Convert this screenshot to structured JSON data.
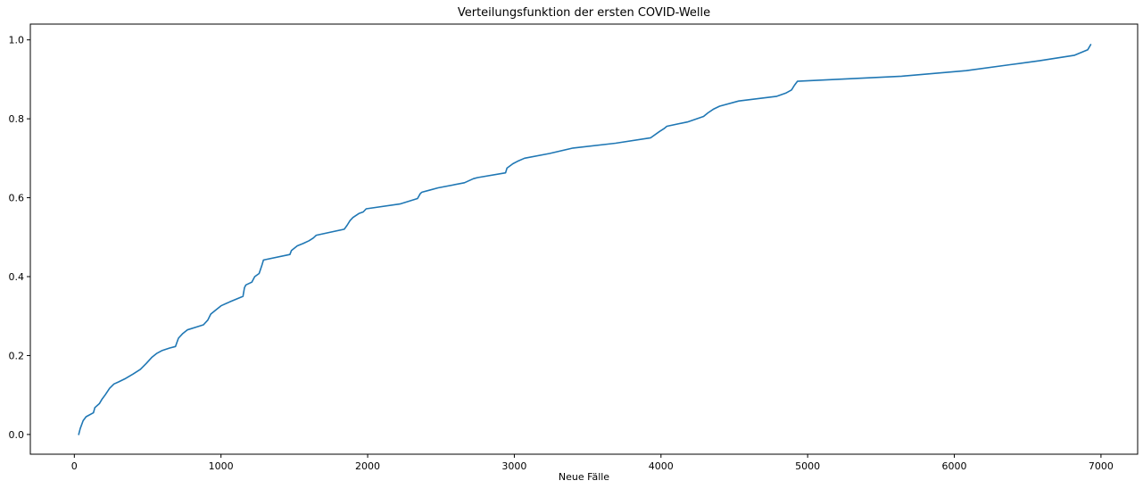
{
  "chart_data": {
    "type": "line",
    "title": "Verteilungsfunktion der ersten COVID-Welle",
    "xlabel": "Neue Fälle",
    "ylabel": "",
    "xlim": [
      -300,
      7250
    ],
    "ylim": [
      -0.05,
      1.04
    ],
    "xticks": [
      0,
      1000,
      2000,
      3000,
      4000,
      5000,
      6000,
      7000
    ],
    "xtick_labels": [
      "0",
      "1000",
      "2000",
      "3000",
      "4000",
      "5000",
      "6000",
      "7000"
    ],
    "yticks": [
      0.0,
      0.2,
      0.4,
      0.6,
      0.8,
      1.0
    ],
    "ytick_labels": [
      "0.0",
      "0.2",
      "0.4",
      "0.6",
      "0.8",
      "1.0"
    ],
    "grid": false,
    "legend": "none",
    "series": [
      {
        "color": "#1f77b4",
        "x": [
          30,
          40,
          60,
          80,
          130,
          140,
          170,
          190,
          210,
          240,
          270,
          300,
          350,
          400,
          450,
          490,
          530,
          560,
          600,
          650,
          690,
          700,
          710,
          740,
          770,
          830,
          880,
          910,
          930,
          960,
          1000,
          1060,
          1150,
          1160,
          1170,
          1210,
          1230,
          1260,
          1280,
          1290,
          1470,
          1480,
          1520,
          1560,
          1600,
          1630,
          1650,
          1840,
          1860,
          1880,
          1900,
          1940,
          1970,
          1990,
          2220,
          2340,
          2360,
          2370,
          2420,
          2480,
          2660,
          2720,
          2750,
          2940,
          2950,
          2990,
          3020,
          3070,
          3240,
          3400,
          3690,
          3930,
          3990,
          4020,
          4040,
          4180,
          4290,
          4320,
          4360,
          4400,
          4530,
          4790,
          4850,
          4890,
          4910,
          4930,
          5640,
          6080,
          6380,
          6580,
          6820,
          6910,
          6930
        ],
        "y": [
          0.0,
          0.015,
          0.035,
          0.045,
          0.055,
          0.068,
          0.078,
          0.09,
          0.1,
          0.117,
          0.128,
          0.133,
          0.142,
          0.153,
          0.165,
          0.18,
          0.196,
          0.205,
          0.213,
          0.219,
          0.223,
          0.234,
          0.244,
          0.256,
          0.265,
          0.272,
          0.278,
          0.29,
          0.305,
          0.314,
          0.326,
          0.336,
          0.35,
          0.372,
          0.379,
          0.386,
          0.4,
          0.408,
          0.43,
          0.442,
          0.456,
          0.466,
          0.478,
          0.484,
          0.491,
          0.498,
          0.505,
          0.52,
          0.53,
          0.542,
          0.55,
          0.56,
          0.564,
          0.572,
          0.584,
          0.598,
          0.611,
          0.614,
          0.619,
          0.625,
          0.638,
          0.648,
          0.651,
          0.663,
          0.675,
          0.686,
          0.692,
          0.7,
          0.712,
          0.726,
          0.738,
          0.752,
          0.768,
          0.775,
          0.781,
          0.792,
          0.806,
          0.815,
          0.825,
          0.832,
          0.845,
          0.857,
          0.865,
          0.873,
          0.885,
          0.895,
          0.908,
          0.922,
          0.937,
          0.947,
          0.961,
          0.975,
          0.988
        ]
      }
    ]
  }
}
